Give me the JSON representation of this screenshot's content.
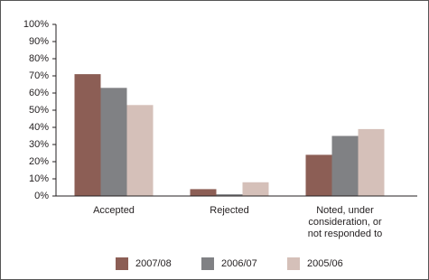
{
  "chart_data": {
    "type": "bar",
    "categories": [
      "Accepted",
      "Rejected",
      "Noted, under consideration, or not responded to"
    ],
    "series": [
      {
        "name": "2007/08",
        "color": "#8c5e55",
        "values": [
          71,
          4,
          24
        ]
      },
      {
        "name": "2006/07",
        "color": "#808184",
        "values": [
          63,
          1,
          35
        ]
      },
      {
        "name": "2005/06",
        "color": "#d5c0b9",
        "values": [
          53,
          8,
          39
        ]
      }
    ],
    "ylim": [
      0,
      100
    ],
    "yticks": [
      {
        "value": 0,
        "label": "0%"
      },
      {
        "value": 10,
        "label": "10%"
      },
      {
        "value": 20,
        "label": "20%"
      },
      {
        "value": 30,
        "label": "30%"
      },
      {
        "value": 40,
        "label": "40%"
      },
      {
        "value": 50,
        "label": "50%"
      },
      {
        "value": 60,
        "label": "60%"
      },
      {
        "value": 70,
        "label": "70%"
      },
      {
        "value": 80,
        "label": "80%"
      },
      {
        "value": 90,
        "label": "90%"
      },
      {
        "value": 100,
        "label": "100%"
      }
    ],
    "grid": false,
    "legend": "bottom"
  }
}
